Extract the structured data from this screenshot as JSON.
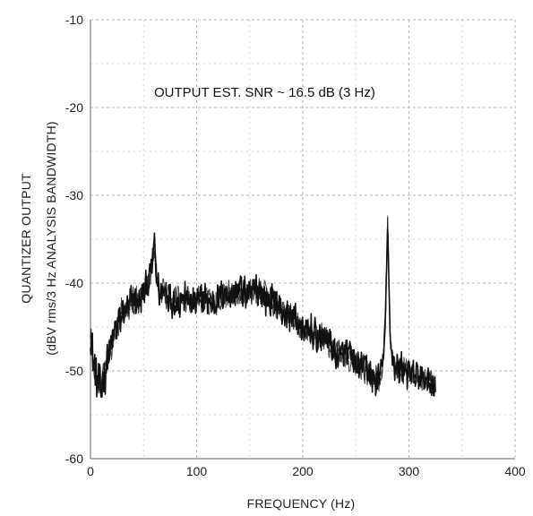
{
  "chart_data": {
    "type": "line",
    "title": "",
    "xlabel": "FREQUENCY (Hz)",
    "ylabel_line1": "QUANTIZER OUTPUT",
    "ylabel_line2": "(dBV rms/3 Hz ANALYSIS BANDWIDTH)",
    "xlim": [
      0,
      400
    ],
    "ylim": [
      -60,
      -10
    ],
    "x_ticks": [
      0,
      100,
      200,
      300,
      400
    ],
    "y_ticks": [
      -10,
      -20,
      -30,
      -40,
      -50,
      -60
    ],
    "x_tick_labels": [
      "0",
      "100",
      "200",
      "300",
      "400"
    ],
    "y_tick_labels": [
      "-10",
      "-20",
      "-30",
      "-40",
      "-50",
      "-60"
    ],
    "grid": true,
    "annotation": "OUTPUT  EST.  SNR ~ 16.5 dB (3 Hz)",
    "series": [
      {
        "x": [
          0,
          5,
          10,
          15,
          20,
          25,
          30,
          35,
          40,
          45,
          50,
          55,
          58,
          60,
          62,
          65,
          70,
          75,
          80,
          90,
          100,
          110,
          120,
          130,
          140,
          150,
          160,
          170,
          180,
          190,
          200,
          210,
          220,
          230,
          240,
          250,
          260,
          270,
          275,
          278,
          280,
          282,
          285,
          290,
          300,
          310,
          320,
          325
        ],
        "y": [
          -46,
          -51,
          -52,
          -49,
          -47,
          -45,
          -43,
          -43,
          -42,
          -42,
          -41,
          -40,
          -38,
          -35,
          -39,
          -41,
          -41,
          -42,
          -42,
          -42,
          -42,
          -42,
          -42,
          -41,
          -41,
          -41,
          -41,
          -42,
          -43,
          -44,
          -45,
          -46,
          -46,
          -48,
          -48,
          -49,
          -50,
          -51,
          -50,
          -44,
          -33,
          -45,
          -49,
          -50,
          -50,
          -51,
          -51,
          -52
        ]
      }
    ],
    "colors": {
      "line": "#111111",
      "grid": "#b8b8b8",
      "grid_faint": "#d8d8d8",
      "text": "#222222",
      "background": "#ffffff"
    }
  }
}
